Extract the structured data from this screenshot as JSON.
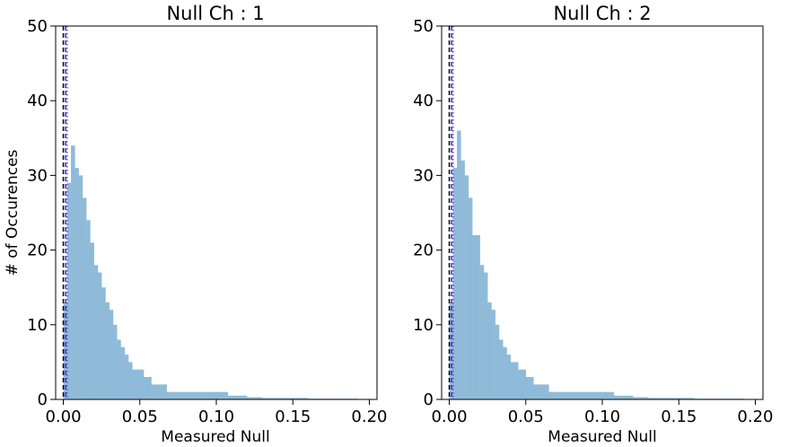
{
  "chart_data": [
    {
      "type": "bar",
      "title": "Null Ch : 1",
      "xlabel": "Measured Null",
      "ylabel": "# of Occurences",
      "xlim": [
        -0.005,
        0.205
      ],
      "ylim": [
        0,
        50
      ],
      "xticks": [
        "0.00",
        "0.05",
        "0.10",
        "0.15",
        "0.20"
      ],
      "yticks": [
        "0",
        "10",
        "20",
        "30",
        "40",
        "50"
      ],
      "grid": false,
      "bar_color": "#8fbbd9",
      "bin_width": 0.0025,
      "bin_starts": [
        0.0,
        0.0025,
        0.005,
        0.0075,
        0.01,
        0.0125,
        0.015,
        0.0175,
        0.02,
        0.0225,
        0.025,
        0.0275,
        0.03,
        0.0325,
        0.035,
        0.0375,
        0.04,
        0.0425,
        0.045,
        0.0475,
        0.05,
        0.0525,
        0.055,
        0.0575,
        0.06,
        0.0625,
        0.065,
        0.0675,
        0.07,
        0.0725,
        0.075,
        0.0775,
        0.08,
        0.0825,
        0.085,
        0.0875,
        0.09,
        0.0925,
        0.095,
        0.0975,
        0.1,
        0.1025,
        0.105,
        0.1075,
        0.11,
        0.1125,
        0.115,
        0.1175,
        0.12,
        0.1225,
        0.125,
        0.1275,
        0.13,
        0.135,
        0.14,
        0.145,
        0.15,
        0.16,
        0.17,
        0.18,
        0.19
      ],
      "counts": [
        13,
        29,
        34,
        31,
        30,
        27,
        24,
        21,
        18,
        17,
        15,
        13,
        12,
        10,
        8,
        7,
        6,
        5,
        4,
        4,
        4,
        3,
        3,
        2,
        2,
        2,
        2,
        1,
        1,
        1,
        1,
        1,
        1,
        1,
        1,
        1,
        1,
        1,
        1,
        1,
        1,
        1,
        1,
        0.5,
        0.5,
        0.5,
        0.5,
        0.5,
        0.3,
        0.3,
        0.3,
        0.3,
        0.2,
        0.2,
        0.2,
        0.2,
        0.2,
        0.1,
        0.1,
        0.1,
        0.1
      ],
      "vlines": [
        {
          "x": 0.0,
          "color": "#000000",
          "style": "dashed"
        },
        {
          "x": 0.0015,
          "color": "#1f3bd6",
          "style": "dashed"
        },
        {
          "x": 0.0025,
          "color": "#8a3bbf",
          "style": "dotted"
        }
      ]
    },
    {
      "type": "bar",
      "title": "Null Ch : 2",
      "xlabel": "Measured Null",
      "ylabel": "",
      "xlim": [
        -0.005,
        0.205
      ],
      "ylim": [
        0,
        50
      ],
      "xticks": [
        "0.00",
        "0.05",
        "0.10",
        "0.15",
        "0.20"
      ],
      "yticks": [
        "0",
        "10",
        "20",
        "30",
        "40",
        "50"
      ],
      "grid": false,
      "bar_color": "#8fbbd9",
      "bin_width": 0.0025,
      "bin_starts": [
        0.0,
        0.0025,
        0.005,
        0.0075,
        0.01,
        0.0125,
        0.015,
        0.0175,
        0.02,
        0.0225,
        0.025,
        0.0275,
        0.03,
        0.0325,
        0.035,
        0.0375,
        0.04,
        0.0425,
        0.045,
        0.0475,
        0.05,
        0.0525,
        0.055,
        0.0575,
        0.06,
        0.0625,
        0.065,
        0.0675,
        0.07,
        0.0725,
        0.075,
        0.0775,
        0.08,
        0.0825,
        0.085,
        0.0875,
        0.09,
        0.0925,
        0.095,
        0.0975,
        0.1,
        0.1025,
        0.105,
        0.1075,
        0.11,
        0.1125,
        0.115,
        0.1175,
        0.12,
        0.1225,
        0.125,
        0.1275,
        0.13,
        0.135,
        0.14,
        0.145,
        0.15,
        0.16,
        0.17,
        0.18,
        0.19
      ],
      "counts": [
        13,
        31,
        36,
        32,
        30,
        27,
        22,
        22,
        18,
        17,
        13,
        12,
        10,
        8,
        7,
        6,
        5,
        5,
        4,
        4,
        3,
        3,
        2,
        2,
        2,
        2,
        1,
        1,
        1,
        1,
        1,
        1,
        1,
        1,
        1,
        1,
        1,
        1,
        1,
        1,
        1,
        1,
        1,
        0.5,
        0.5,
        0.5,
        0.5,
        0.5,
        0.3,
        0.3,
        0.3,
        0.3,
        0.2,
        0.2,
        0.2,
        0.2,
        0.2,
        0.1,
        0.1,
        0.1,
        0.1
      ],
      "vlines": [
        {
          "x": 0.0,
          "color": "#000000",
          "style": "dashed"
        },
        {
          "x": 0.0015,
          "color": "#1f3bd6",
          "style": "dashed"
        },
        {
          "x": 0.0025,
          "color": "#8a3bbf",
          "style": "dotted"
        }
      ]
    }
  ]
}
